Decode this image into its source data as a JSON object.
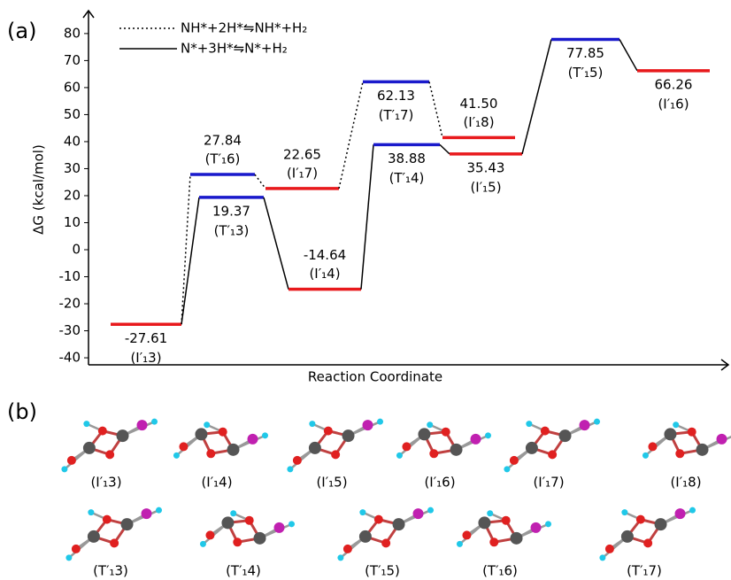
{
  "chart_data": {
    "type": "energy-profile",
    "panel_label": "(a)",
    "x_label": "Reaction Coordinate",
    "y_label": "ΔG (kcal/mol)",
    "ylim": [
      -42.6,
      87.5
    ],
    "yticks": [
      80,
      70,
      60,
      50,
      40,
      30,
      20,
      10,
      0,
      -10,
      -20,
      -30,
      -40
    ],
    "series": [
      {
        "name": "NH*+2H*⇋NH*+H₂",
        "style": "dotted",
        "color": "#000000",
        "levels": [
          {
            "label": "(T′₁6)",
            "value": 27.84,
            "color": "#1a1acc"
          },
          {
            "label": "(I′₁7)",
            "value": 22.65,
            "color": "#e8191c"
          },
          {
            "label": "(T′₁7)",
            "value": 62.13,
            "color": "#1a1acc"
          },
          {
            "label": "(I′₁8)",
            "value": 41.5,
            "value_label": "41.50",
            "color": "#e8191c"
          }
        ]
      },
      {
        "name": "N*+3H*⇋N*+H₂",
        "style": "solid",
        "color": "#000000",
        "levels": [
          {
            "label": "(I′₁3)",
            "value": -27.61,
            "color": "#e8191c"
          },
          {
            "label": "(T′₁3)",
            "value": 19.37,
            "color": "#1a1acc"
          },
          {
            "label": "(I′₁4)",
            "value": -14.64,
            "color": "#e8191c"
          },
          {
            "label": "(T′₁4)",
            "value": 38.88,
            "color": "#1a1acc"
          },
          {
            "label": "(I′₁5)",
            "value": 35.43,
            "color": "#e8191c"
          },
          {
            "label": "(T′₁5)",
            "value": 77.85,
            "color": "#1a1acc"
          },
          {
            "label": "(I′₁6)",
            "value": 66.26,
            "color": "#e8191c"
          }
        ]
      }
    ]
  },
  "panel_b": {
    "label": "(b)",
    "structures": [
      [
        "(I′₁3)",
        "(I′₁4)",
        "(I′₁5)",
        "(I′₁6)",
        "(I′₁7)",
        "(I′₁8)"
      ],
      [
        "(T′₁3)",
        "(T′₁4)",
        "(T′₁5)",
        "(T′₁6)",
        "(T′₁7)"
      ]
    ]
  }
}
